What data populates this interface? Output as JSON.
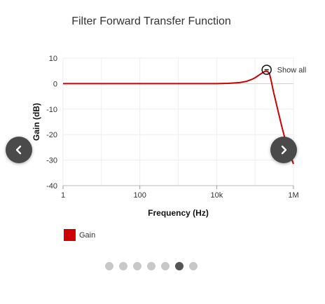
{
  "chart_data": {
    "type": "line",
    "title": "Filter Forward Transfer Function",
    "xlabel": "Frequency (Hz)",
    "ylabel": "Gain (dB)",
    "xscale": "log",
    "xlim": [
      1,
      1000000
    ],
    "ylim": [
      -40,
      10
    ],
    "x_tick_values": [
      1,
      100,
      10000,
      1000000
    ],
    "x_tick_labels": [
      "1",
      "100",
      "10k",
      "1M"
    ],
    "y_tick_values": [
      10,
      0,
      -10,
      -20,
      -30,
      -40
    ],
    "y_tick_labels": [
      "10",
      "0",
      "-10",
      "-20",
      "-30",
      "-40"
    ],
    "grid": true,
    "legend_position": "bottom-left",
    "reset_zoom_label": "Show all",
    "series": [
      {
        "name": "Gain",
        "color": "#cc0000",
        "x": [
          1,
          10,
          100,
          1000,
          10000,
          20000,
          40000,
          60000,
          80000,
          100000,
          120000,
          140000,
          160000,
          180000,
          200000,
          220000,
          240000,
          260000,
          300000,
          400000,
          500000,
          600000,
          800000,
          1000000
        ],
        "y": [
          0,
          0,
          0,
          0,
          0,
          0.1,
          0.4,
          0.9,
          1.6,
          2.3,
          3.1,
          3.8,
          4.4,
          4.8,
          4.9,
          4.6,
          3.6,
          1.5,
          -3,
          -11,
          -17,
          -21.5,
          -27.5,
          -31.5
        ]
      }
    ]
  },
  "pagination": {
    "count": 7,
    "active_index": 5
  }
}
